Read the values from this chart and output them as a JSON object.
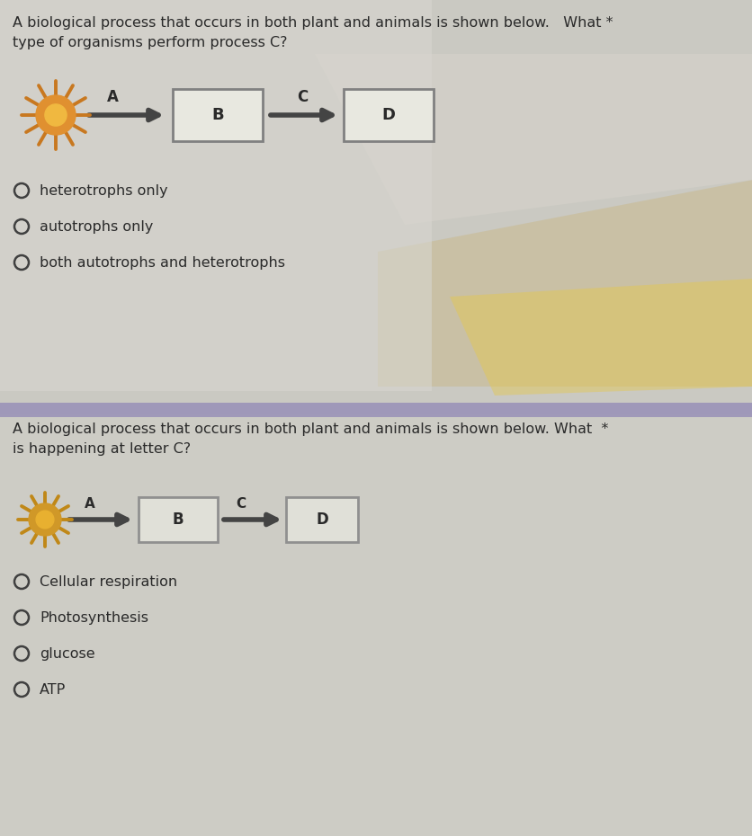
{
  "bg_left_color": "#cccbc4",
  "bg_right_color": "#b8b5aa",
  "overlay_color": "#d8d6d0",
  "panel1_bg": "#d4d2ca",
  "panel2_bg": "#cccac2",
  "question1": {
    "text_line1": "A biological process that occurs in both plant and animals is shown below.   What *",
    "text_line2": "type of organisms perform process C?",
    "options": [
      "heterotrophs only",
      "autotrophs only",
      "both autotrophs and heterotrophs"
    ]
  },
  "question2": {
    "text_line1": "A biological process that occurs in both plant and animals is shown below. What  *",
    "text_line2": "is happening at letter C?",
    "options": [
      "Cellular respiration",
      "Photosynthesis",
      "glucose",
      "ATP"
    ]
  },
  "sun1_center": "#e09030",
  "sun1_ray": "#c87820",
  "sun1_inner": "#f0b840",
  "sun2_center": "#d09828",
  "sun2_ray": "#c08818",
  "sun2_inner": "#e8b030",
  "arrow_color": "#444444",
  "box1_fill": "#e8e8e0",
  "box1_edge": "#808080",
  "box2_fill": "#e0e0d8",
  "box2_edge": "#909090",
  "label_color": "#2a2a2a",
  "option_color": "#2a2a2a",
  "radio_color": "#404040",
  "divider_color": "#9890b8",
  "bg_photo_warm": "#d4c090",
  "bg_photo_warm2": "#c8a850",
  "bg_photo_cool": "#b8bcc8",
  "font_size_q": 11.5,
  "font_size_opt": 11.5,
  "font_size_label": 12
}
